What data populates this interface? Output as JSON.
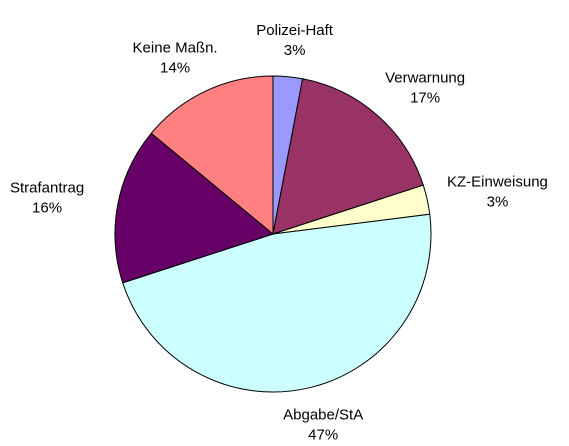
{
  "chart_data": {
    "type": "pie",
    "categories": [
      "Polizei-Haft",
      "Verwarnung",
      "KZ-Einweisung",
      "Abgabe/StA",
      "Strafantrag",
      "Keine Maßn."
    ],
    "values": [
      3,
      17,
      3,
      47,
      16,
      14
    ],
    "value_labels": [
      "3%",
      "17%",
      "3%",
      "47%",
      "16%",
      "14%"
    ],
    "colors": [
      "#9999ff",
      "#993366",
      "#ffffcc",
      "#ccffff",
      "#660066",
      "#ff8080"
    ]
  }
}
